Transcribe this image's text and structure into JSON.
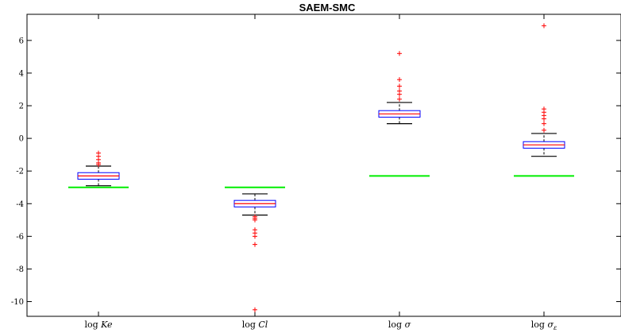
{
  "chart_data": {
    "type": "boxplot",
    "title": "SAEM-SMC",
    "xlabel": "",
    "ylabel": "",
    "ylim": [
      -10.9,
      7.6
    ],
    "yticks": [
      6,
      4,
      2,
      0,
      -2,
      -4,
      -6,
      -8,
      -10
    ],
    "ytick_labels": [
      "6",
      "4",
      "2",
      "0",
      "-2",
      "-4",
      "-6",
      "-8",
      "-10"
    ],
    "categories": [
      "log Ke",
      "log Cl",
      "log σ",
      "log σ_ε"
    ],
    "category_labels": [
      {
        "main": "log ",
        "var": "Ke",
        "sub": ""
      },
      {
        "main": "log ",
        "var": "Cl",
        "sub": ""
      },
      {
        "main": "log ",
        "var": "σ",
        "sub": ""
      },
      {
        "main": "log ",
        "var": "σ",
        "sub": "ε"
      }
    ],
    "boxes": [
      {
        "whisker_low": -2.9,
        "q1": -2.5,
        "median": -2.3,
        "q3": -2.1,
        "whisker_high": -1.7,
        "outliers": [
          -0.9,
          -1.1,
          -1.3,
          -1.5,
          -1.6
        ],
        "reference": -3.0
      },
      {
        "whisker_low": -4.7,
        "q1": -4.2,
        "median": -4.0,
        "q3": -3.8,
        "whisker_high": -3.4,
        "outliers": [
          -4.8,
          -4.9,
          -5.0,
          -5.6,
          -5.8,
          -6.0,
          -6.5,
          -10.5
        ],
        "reference": -3.0
      },
      {
        "whisker_low": 0.9,
        "q1": 1.3,
        "median": 1.5,
        "q3": 1.7,
        "whisker_high": 2.2,
        "outliers": [
          2.4,
          2.7,
          2.9,
          3.2,
          3.6,
          5.2
        ],
        "reference": -2.3
      },
      {
        "whisker_low": -1.1,
        "q1": -0.6,
        "median": -0.4,
        "q3": -0.2,
        "whisker_high": 0.3,
        "outliers": [
          0.5,
          0.9,
          1.2,
          1.4,
          1.6,
          1.8,
          6.9
        ],
        "reference": -2.3
      }
    ],
    "colors": {
      "box": "#0000ff",
      "median": "#ff0000",
      "whisker": "#000000",
      "outlier": "#ff0000",
      "reference": "#00ee00",
      "axes": "#000000"
    },
    "grid": false,
    "legend": "none"
  }
}
